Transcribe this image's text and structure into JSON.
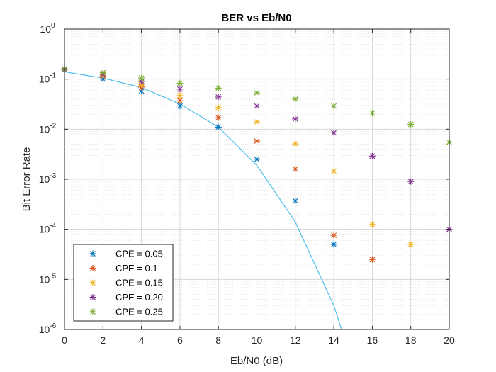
{
  "chart_data": {
    "type": "scatter",
    "title": "BER vs Eb/N0",
    "xlabel": "Eb/N0 (dB)",
    "ylabel": "Bit Error Rate",
    "xlim": [
      0,
      20
    ],
    "ylim": [
      1e-06,
      1
    ],
    "yscale": "log",
    "grid": true,
    "minor_grid": true,
    "legend_position": "bottom-left",
    "x_ticks": [
      "0",
      "2",
      "4",
      "6",
      "8",
      "10",
      "12",
      "14",
      "16",
      "18",
      "20"
    ],
    "y_ticks": [
      {
        "base": "10",
        "exp": "0"
      },
      {
        "base": "10",
        "exp": "-1"
      },
      {
        "base": "10",
        "exp": "-2"
      },
      {
        "base": "10",
        "exp": "-3"
      },
      {
        "base": "10",
        "exp": "-4"
      },
      {
        "base": "10",
        "exp": "-5"
      },
      {
        "base": "10",
        "exp": "-6"
      }
    ],
    "theory_curve": {
      "color": "#4DBEEE",
      "x": [
        0,
        2,
        4,
        6,
        8,
        10,
        12,
        14,
        14.4
      ],
      "y": [
        0.14,
        0.105,
        0.068,
        0.032,
        0.011,
        0.0019,
        0.00014,
        3e-06,
        1e-06
      ]
    },
    "series": [
      {
        "name": "CPE = 0.05",
        "color": "#0072BD",
        "x": [
          0,
          2,
          4,
          6,
          8,
          10,
          12,
          14
        ],
        "y": [
          0.155,
          0.1,
          0.058,
          0.029,
          0.011,
          0.0025,
          0.00037,
          5e-05
        ]
      },
      {
        "name": "CPE = 0.1",
        "color": "#D95319",
        "x": [
          0,
          2,
          4,
          6,
          8,
          10,
          12,
          14,
          16
        ],
        "y": [
          0.155,
          0.115,
          0.069,
          0.037,
          0.017,
          0.0058,
          0.0016,
          7.6e-05,
          2.5e-05
        ]
      },
      {
        "name": "CPE = 0.15",
        "color": "#EDB120",
        "x": [
          0,
          2,
          4,
          6,
          8,
          10,
          12,
          14,
          16,
          18
        ],
        "y": [
          0.155,
          0.12,
          0.078,
          0.047,
          0.027,
          0.014,
          0.0051,
          0.00145,
          0.000125,
          5e-05
        ]
      },
      {
        "name": "CPE = 0.20",
        "color": "#7E2F8E",
        "x": [
          0,
          2,
          4,
          6,
          8,
          10,
          12,
          14,
          16,
          18,
          20
        ],
        "y": [
          0.155,
          0.125,
          0.09,
          0.063,
          0.044,
          0.029,
          0.016,
          0.0085,
          0.0029,
          0.0009,
          0.0001
        ]
      },
      {
        "name": "CPE = 0.25",
        "color": "#77AC30",
        "x": [
          0,
          2,
          4,
          6,
          8,
          10,
          12,
          14,
          16,
          18,
          20
        ],
        "y": [
          0.16,
          0.135,
          0.105,
          0.083,
          0.066,
          0.053,
          0.04,
          0.029,
          0.021,
          0.0125,
          0.0055
        ]
      }
    ]
  }
}
